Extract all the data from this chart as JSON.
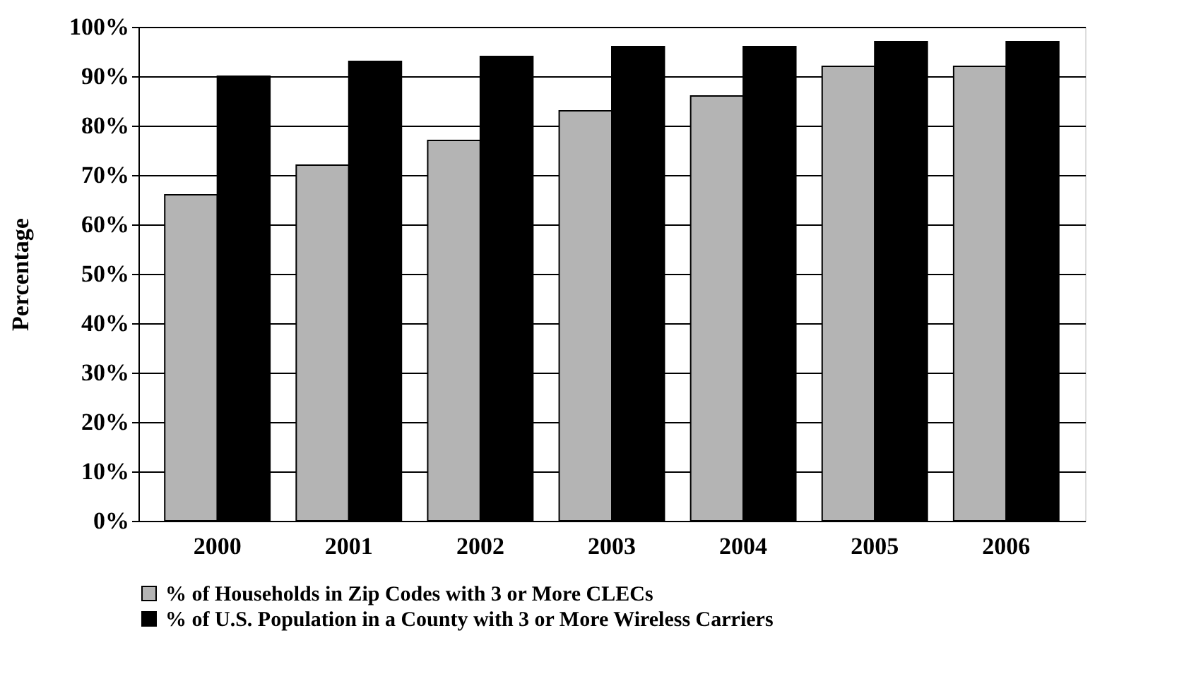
{
  "chart_data": {
    "type": "bar",
    "ylabel": "Percentage",
    "categories": [
      "2000",
      "2001",
      "2002",
      "2003",
      "2004",
      "2005",
      "2006"
    ],
    "series": [
      {
        "name": "% of Households in Zip Codes with 3 or More CLECs",
        "color": "#b4b4b4",
        "values": [
          66,
          72,
          77,
          83,
          86,
          92,
          92
        ]
      },
      {
        "name": "% of U.S. Population in a County with 3 or More Wireless Carriers",
        "color": "#000000",
        "values": [
          90,
          93,
          94,
          96,
          96,
          97,
          97
        ]
      }
    ],
    "ylim": [
      0,
      100
    ],
    "yticks": [
      {
        "value": 0,
        "label": "0%"
      },
      {
        "value": 10,
        "label": "10%"
      },
      {
        "value": 20,
        "label": "20%"
      },
      {
        "value": 30,
        "label": "30%"
      },
      {
        "value": 40,
        "label": "40%"
      },
      {
        "value": 50,
        "label": "50%"
      },
      {
        "value": 60,
        "label": "60%"
      },
      {
        "value": 70,
        "label": "70%"
      },
      {
        "value": 80,
        "label": "80%"
      },
      {
        "value": 90,
        "label": "90%"
      },
      {
        "value": 100,
        "label": "100%"
      }
    ],
    "grid": "y",
    "legend": "bottom"
  }
}
